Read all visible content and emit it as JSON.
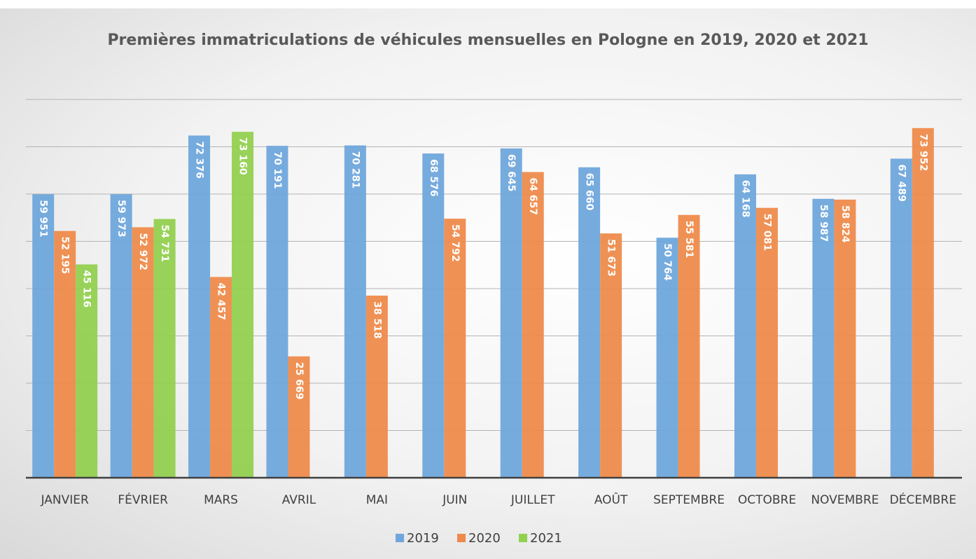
{
  "chart_data": {
    "type": "bar",
    "title": "Premières immatriculations de véhicules mensuelles en Pologne en 2019, 2020 et 2021",
    "categories": [
      "JANVIER",
      "FÉVRIER",
      "MARS",
      "AVRIL",
      "MAI",
      "JUIN",
      "JUILLET",
      "AOÛT",
      "SEPTEMBRE",
      "OCTOBRE",
      "NOVEMBRE",
      "DÉCEMBRE"
    ],
    "series": [
      {
        "name": "2019",
        "color": "#6fa6dc",
        "values": [
          59951,
          59973,
          72376,
          70191,
          70281,
          68576,
          69645,
          65660,
          50764,
          64168,
          58987,
          67489
        ],
        "value_labels": [
          "59 951",
          "59 973",
          "72 376",
          "70 191",
          "70 281",
          "68 576",
          "69 645",
          "65 660",
          "50 764",
          "64 168",
          "58 987",
          "67 489"
        ]
      },
      {
        "name": "2020",
        "color": "#ee8b4b",
        "values": [
          52195,
          52972,
          42457,
          25669,
          38518,
          54792,
          64657,
          51673,
          55581,
          57081,
          58824,
          73952
        ],
        "value_labels": [
          "52 195",
          "52 972",
          "42 457",
          "25 669",
          "38 518",
          "54 792",
          "64 657",
          "51 673",
          "55 581",
          "57 081",
          "58 824",
          "73 952"
        ]
      },
      {
        "name": "2021",
        "color": "#92d050",
        "values": [
          45116,
          54731,
          73160,
          null,
          null,
          null,
          null,
          null,
          null,
          null,
          null,
          null
        ],
        "value_labels": [
          "45 116",
          "54 731",
          "73 160",
          null,
          null,
          null,
          null,
          null,
          null,
          null,
          null,
          null
        ]
      }
    ],
    "ylim": [
      0,
      80000
    ],
    "yticks": [
      0,
      10000,
      20000,
      30000,
      40000,
      50000,
      60000,
      70000,
      80000
    ],
    "grid": true,
    "legend": "bottom"
  }
}
